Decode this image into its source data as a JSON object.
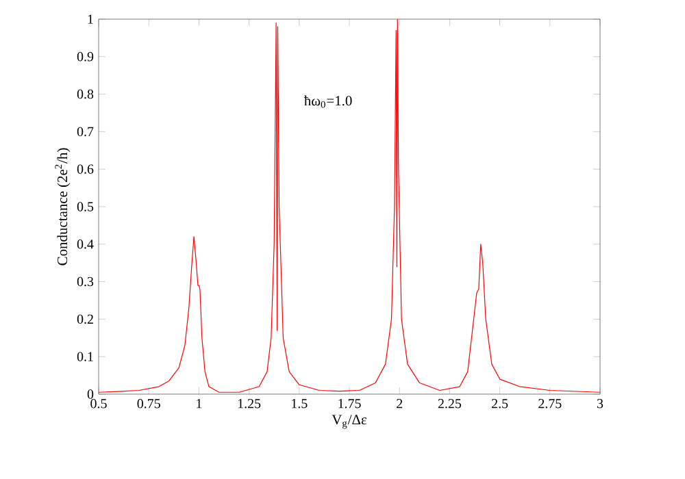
{
  "chart_data": {
    "type": "line",
    "xlabel": "V$_{g}$/Δε",
    "ylabel": "Conductance (2e$^{2}$/h)",
    "annotations": [
      "ħω$_{0}$=1.0"
    ],
    "x": [
      0.5,
      0.6,
      0.7,
      0.8,
      0.85,
      0.9,
      0.93,
      0.95,
      0.965,
      0.975,
      0.985,
      0.995,
      1.0,
      1.005,
      1.015,
      1.03,
      1.05,
      1.1,
      1.2,
      1.3,
      1.34,
      1.36,
      1.375,
      1.385,
      1.39,
      1.393,
      1.4,
      1.42,
      1.45,
      1.5,
      1.6,
      1.7,
      1.8,
      1.88,
      1.93,
      1.96,
      1.975,
      1.983,
      1.987,
      1.99,
      1.995,
      2.01,
      2.04,
      2.1,
      2.2,
      2.3,
      2.34,
      2.37,
      2.385,
      2.395,
      2.405,
      2.415,
      2.43,
      2.46,
      2.5,
      2.6,
      2.75,
      3
    ],
    "series": [
      {
        "color": "#ff0000",
        "values": [
          0.005,
          0.007,
          0.01,
          0.02,
          0.035,
          0.07,
          0.13,
          0.23,
          0.35,
          0.42,
          0.36,
          0.29,
          0.29,
          0.28,
          0.15,
          0.06,
          0.02,
          0.005,
          0.005,
          0.02,
          0.06,
          0.15,
          0.4,
          0.99,
          0.17,
          0.98,
          0.5,
          0.15,
          0.06,
          0.025,
          0.01,
          0.008,
          0.01,
          0.03,
          0.08,
          0.2,
          0.5,
          0.97,
          0.34,
          1.0,
          0.6,
          0.2,
          0.08,
          0.03,
          0.01,
          0.02,
          0.06,
          0.2,
          0.27,
          0.28,
          0.4,
          0.35,
          0.2,
          0.08,
          0.04,
          0.02,
          0.01,
          0.005
        ]
      }
    ],
    "xlim": [
      0.5,
      3
    ],
    "ylim": [
      0,
      1
    ],
    "xticks": [
      0.5,
      0.75,
      1,
      1.25,
      1.5,
      1.75,
      2,
      2.25,
      2.5,
      2.75,
      3
    ],
    "yticks": [
      0,
      0.1,
      0.2,
      0.3,
      0.4,
      0.5,
      0.6,
      0.7,
      0.8,
      0.9,
      1
    ],
    "line_style": "solid"
  }
}
